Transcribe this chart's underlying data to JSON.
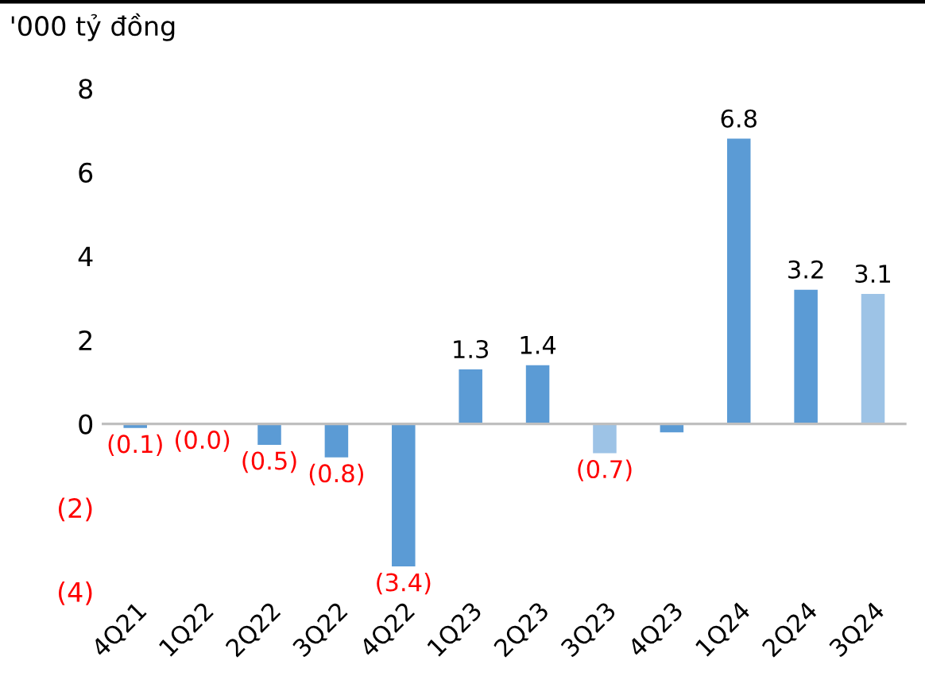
{
  "chart_data": {
    "type": "bar",
    "ylabel": "'000 tỷ đồng",
    "categories": [
      "4Q21",
      "1Q22",
      "2Q22",
      "3Q22",
      "4Q22",
      "1Q23",
      "2Q23",
      "3Q23",
      "4Q23",
      "1Q24",
      "2Q24",
      "3Q24"
    ],
    "values": [
      -0.1,
      0.0,
      -0.5,
      -0.8,
      -3.4,
      1.3,
      1.4,
      -0.7,
      -0.2,
      6.8,
      3.2,
      3.1
    ],
    "colors": [
      "#5b9bd5",
      "#5b9bd5",
      "#5b9bd5",
      "#5b9bd5",
      "#5b9bd5",
      "#5b9bd5",
      "#5b9bd5",
      "#9dc3e6",
      "#5b9bd5",
      "#5b9bd5",
      "#5b9bd5",
      "#9dc3e6"
    ],
    "value_labels": [
      "(0.1)",
      "(0.0)",
      "(0.5)",
      "(0.8)",
      "(3.4)",
      "1.3",
      "1.4",
      "(0.7)",
      null,
      "6.8",
      "3.2",
      "3.1"
    ],
    "ylim": [
      -4,
      8
    ],
    "yticks": [
      {
        "value": -4,
        "label": "(4)"
      },
      {
        "value": -2,
        "label": "(2)"
      },
      0,
      2,
      4,
      6,
      8
    ],
    "ref_lines": [
      {
        "axis": "y",
        "value": 0,
        "color": "#bfbfbf"
      }
    ],
    "grid": false,
    "legend": false
  }
}
